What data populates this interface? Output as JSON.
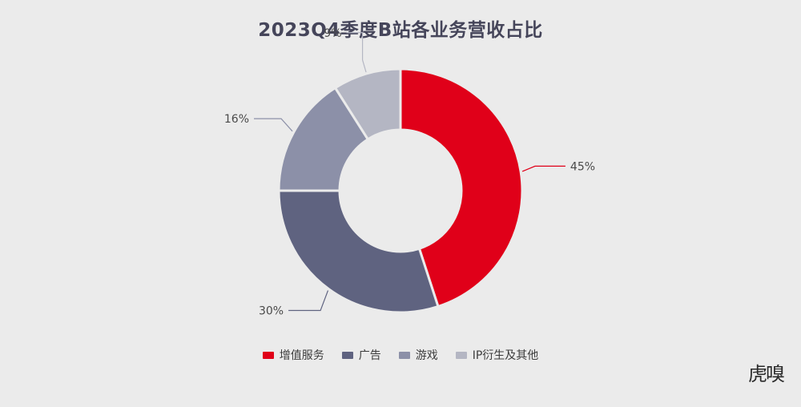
{
  "chart_data": {
    "type": "pie",
    "title": "2023Q4季度B站各业务营收占比",
    "categories": [
      "增值服务",
      "广告",
      "游戏",
      "IP衍生及其他"
    ],
    "values": [
      45,
      30,
      16,
      9
    ],
    "labels": [
      "45%",
      "30%",
      "16%",
      "9%"
    ],
    "colors": [
      "#e00019",
      "#5f6380",
      "#8c90a8",
      "#b4b6c3"
    ],
    "donut": true,
    "legend_position": "bottom"
  },
  "watermark": "虎嗅"
}
